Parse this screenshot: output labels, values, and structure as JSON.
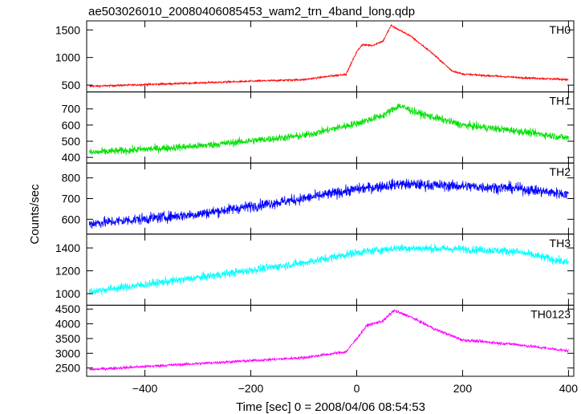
{
  "chart_data": {
    "type": "line",
    "title": "ae503026010_20080406085453_wam2_trn_4band_long.qdp",
    "xlabel": "Time [sec] 0 = 2008/04/06 08:54:53",
    "ylabel": "Counts/sec",
    "xlim": [
      -510,
      410
    ],
    "x_ticks": [
      -400,
      -200,
      0,
      200,
      400
    ],
    "x_tick_labels": [
      "−400",
      "−200",
      "0",
      "200",
      "400"
    ],
    "panels": [
      {
        "name": "TH0",
        "color": "#ff0000",
        "ylim": [
          420,
          1620
        ],
        "y_ticks": [
          500,
          1000,
          1500
        ],
        "noise": 18,
        "key_points": [
          [
            -500,
            480
          ],
          [
            -300,
            540
          ],
          [
            -100,
            600
          ],
          [
            -20,
            700
          ],
          [
            0,
            1100
          ],
          [
            10,
            1230
          ],
          [
            30,
            1220
          ],
          [
            50,
            1300
          ],
          [
            65,
            1580
          ],
          [
            80,
            1500
          ],
          [
            100,
            1400
          ],
          [
            140,
            1100
          ],
          [
            180,
            760
          ],
          [
            200,
            700
          ],
          [
            300,
            640
          ],
          [
            400,
            600
          ]
        ]
      },
      {
        "name": "TH1",
        "color": "#00e000",
        "ylim": [
          380,
          790
        ],
        "y_ticks": [
          400,
          500,
          600,
          700
        ],
        "noise": 25,
        "key_points": [
          [
            -500,
            430
          ],
          [
            -300,
            470
          ],
          [
            -100,
            535
          ],
          [
            0,
            610
          ],
          [
            50,
            660
          ],
          [
            80,
            720
          ],
          [
            120,
            670
          ],
          [
            200,
            600
          ],
          [
            300,
            565
          ],
          [
            400,
            520
          ]
        ]
      },
      {
        "name": "TH2",
        "color": "#0000ff",
        "ylim": [
          540,
          860
        ],
        "y_ticks": [
          600,
          700,
          800
        ],
        "noise": 28,
        "key_points": [
          [
            -500,
            580
          ],
          [
            -300,
            625
          ],
          [
            -100,
            700
          ],
          [
            0,
            745
          ],
          [
            80,
            770
          ],
          [
            200,
            760
          ],
          [
            300,
            750
          ],
          [
            400,
            720
          ]
        ]
      },
      {
        "name": "TH3",
        "color": "#00ffff",
        "ylim": [
          920,
          1500
        ],
        "y_ticks": [
          1000,
          1200,
          1400
        ],
        "noise": 38,
        "key_points": [
          [
            -500,
            1020
          ],
          [
            -300,
            1140
          ],
          [
            -100,
            1270
          ],
          [
            0,
            1360
          ],
          [
            80,
            1400
          ],
          [
            200,
            1390
          ],
          [
            300,
            1370
          ],
          [
            400,
            1270
          ]
        ]
      },
      {
        "name": "TH0123",
        "color": "#ff00ff",
        "ylim": [
          2300,
          4550
        ],
        "y_ticks": [
          2500,
          3000,
          3500,
          4000,
          4500
        ],
        "noise": 55,
        "key_points": [
          [
            -500,
            2450
          ],
          [
            -300,
            2650
          ],
          [
            -100,
            2850
          ],
          [
            -20,
            3050
          ],
          [
            0,
            3500
          ],
          [
            20,
            3950
          ],
          [
            50,
            4100
          ],
          [
            70,
            4450
          ],
          [
            100,
            4250
          ],
          [
            150,
            3800
          ],
          [
            200,
            3450
          ],
          [
            300,
            3300
          ],
          [
            400,
            3080
          ]
        ]
      }
    ]
  }
}
